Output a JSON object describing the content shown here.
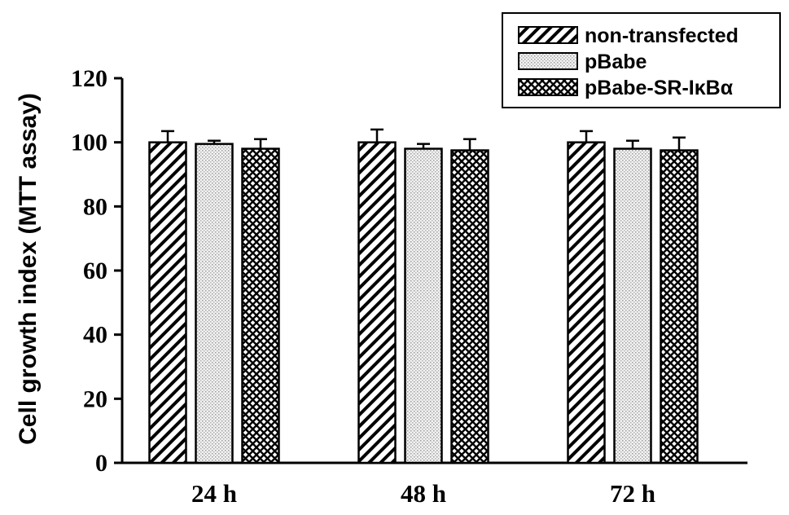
{
  "chart_data": {
    "type": "bar",
    "ylabel": "Cell growth index (MTT assay)",
    "xlabel": "",
    "ylim": [
      0,
      120
    ],
    "yticks": [
      0,
      20,
      40,
      60,
      80,
      100,
      120
    ],
    "categories": [
      "24 h",
      "48 h",
      "72 h"
    ],
    "series": [
      {
        "name": "non-transfected",
        "values": [
          100,
          100,
          100
        ],
        "errors": [
          3.5,
          4,
          3.5
        ],
        "pattern": "diagonal-hatch"
      },
      {
        "name": "pBabe",
        "values": [
          99.5,
          98,
          98
        ],
        "errors": [
          1,
          1.5,
          2.5
        ],
        "pattern": "dotted"
      },
      {
        "name": "pBabe-SR-IκBα",
        "values": [
          98,
          97.5,
          97.5
        ],
        "errors": [
          3,
          3.5,
          4
        ],
        "pattern": "crosshatch"
      }
    ],
    "legend": {
      "placement": "top-right",
      "framed": true
    },
    "grid": false
  }
}
